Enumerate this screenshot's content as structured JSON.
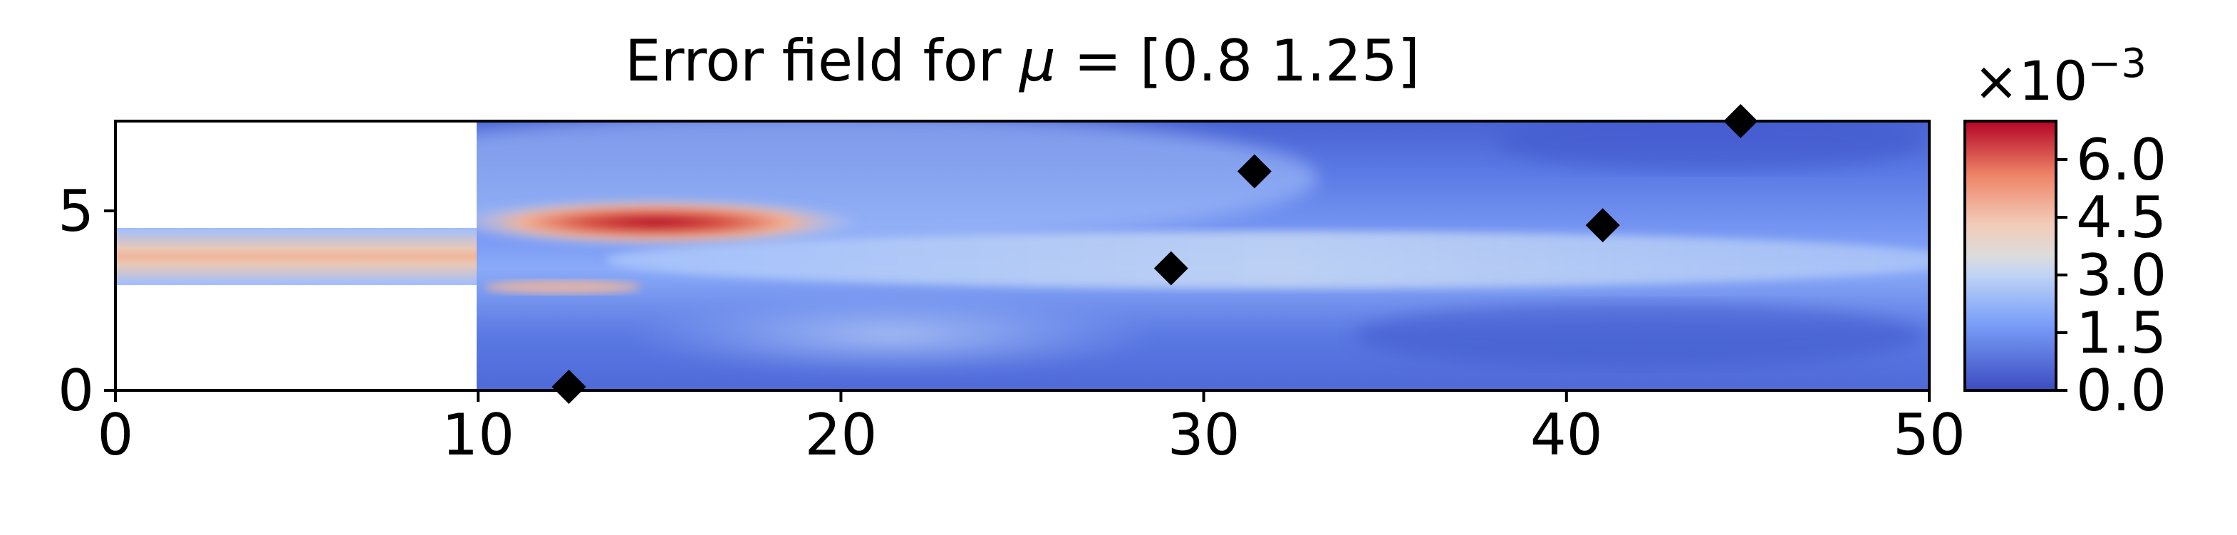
{
  "chart_data": {
    "type": "heatmap",
    "title": "Error field for μ = [0.8  1.25]",
    "title_parts": {
      "prefix": "Error field for ",
      "symbol": "μ",
      "suffix": " = [0.8  1.25]"
    },
    "xlabel": "",
    "ylabel": "",
    "xlim": [
      0,
      50
    ],
    "ylim": [
      0,
      7.5
    ],
    "x_ticks": [
      0,
      10,
      20,
      30,
      40,
      50
    ],
    "x_tick_labels": [
      "0",
      "10",
      "20",
      "30",
      "40",
      "50"
    ],
    "y_ticks": [
      0,
      5
    ],
    "y_tick_labels": [
      "0",
      "5"
    ],
    "colormap": "coolwarm",
    "colorbar": {
      "range": [
        0.0,
        7.0
      ],
      "ticks": [
        0.0,
        1.5,
        3.0,
        4.5,
        6.0
      ],
      "tick_labels": [
        "0.0",
        "1.5",
        "3.0",
        "4.5",
        "6.0"
      ],
      "multiplier_base": "×10",
      "multiplier_exponent": "−3"
    },
    "domain": {
      "inlet_channel": {
        "x": [
          0,
          10
        ],
        "y": [
          3,
          4.5
        ]
      },
      "main_channel": {
        "x": [
          10,
          50
        ],
        "y": [
          0,
          7.5
        ]
      }
    },
    "markers": {
      "shape": "diamond",
      "color": "#000000",
      "points": [
        {
          "x": 12.5,
          "y": 0.1
        },
        {
          "x": 29.1,
          "y": 3.4
        },
        {
          "x": 31.4,
          "y": 6.1
        },
        {
          "x": 41.0,
          "y": 4.6
        },
        {
          "x": 44.8,
          "y": 7.5
        }
      ]
    }
  }
}
